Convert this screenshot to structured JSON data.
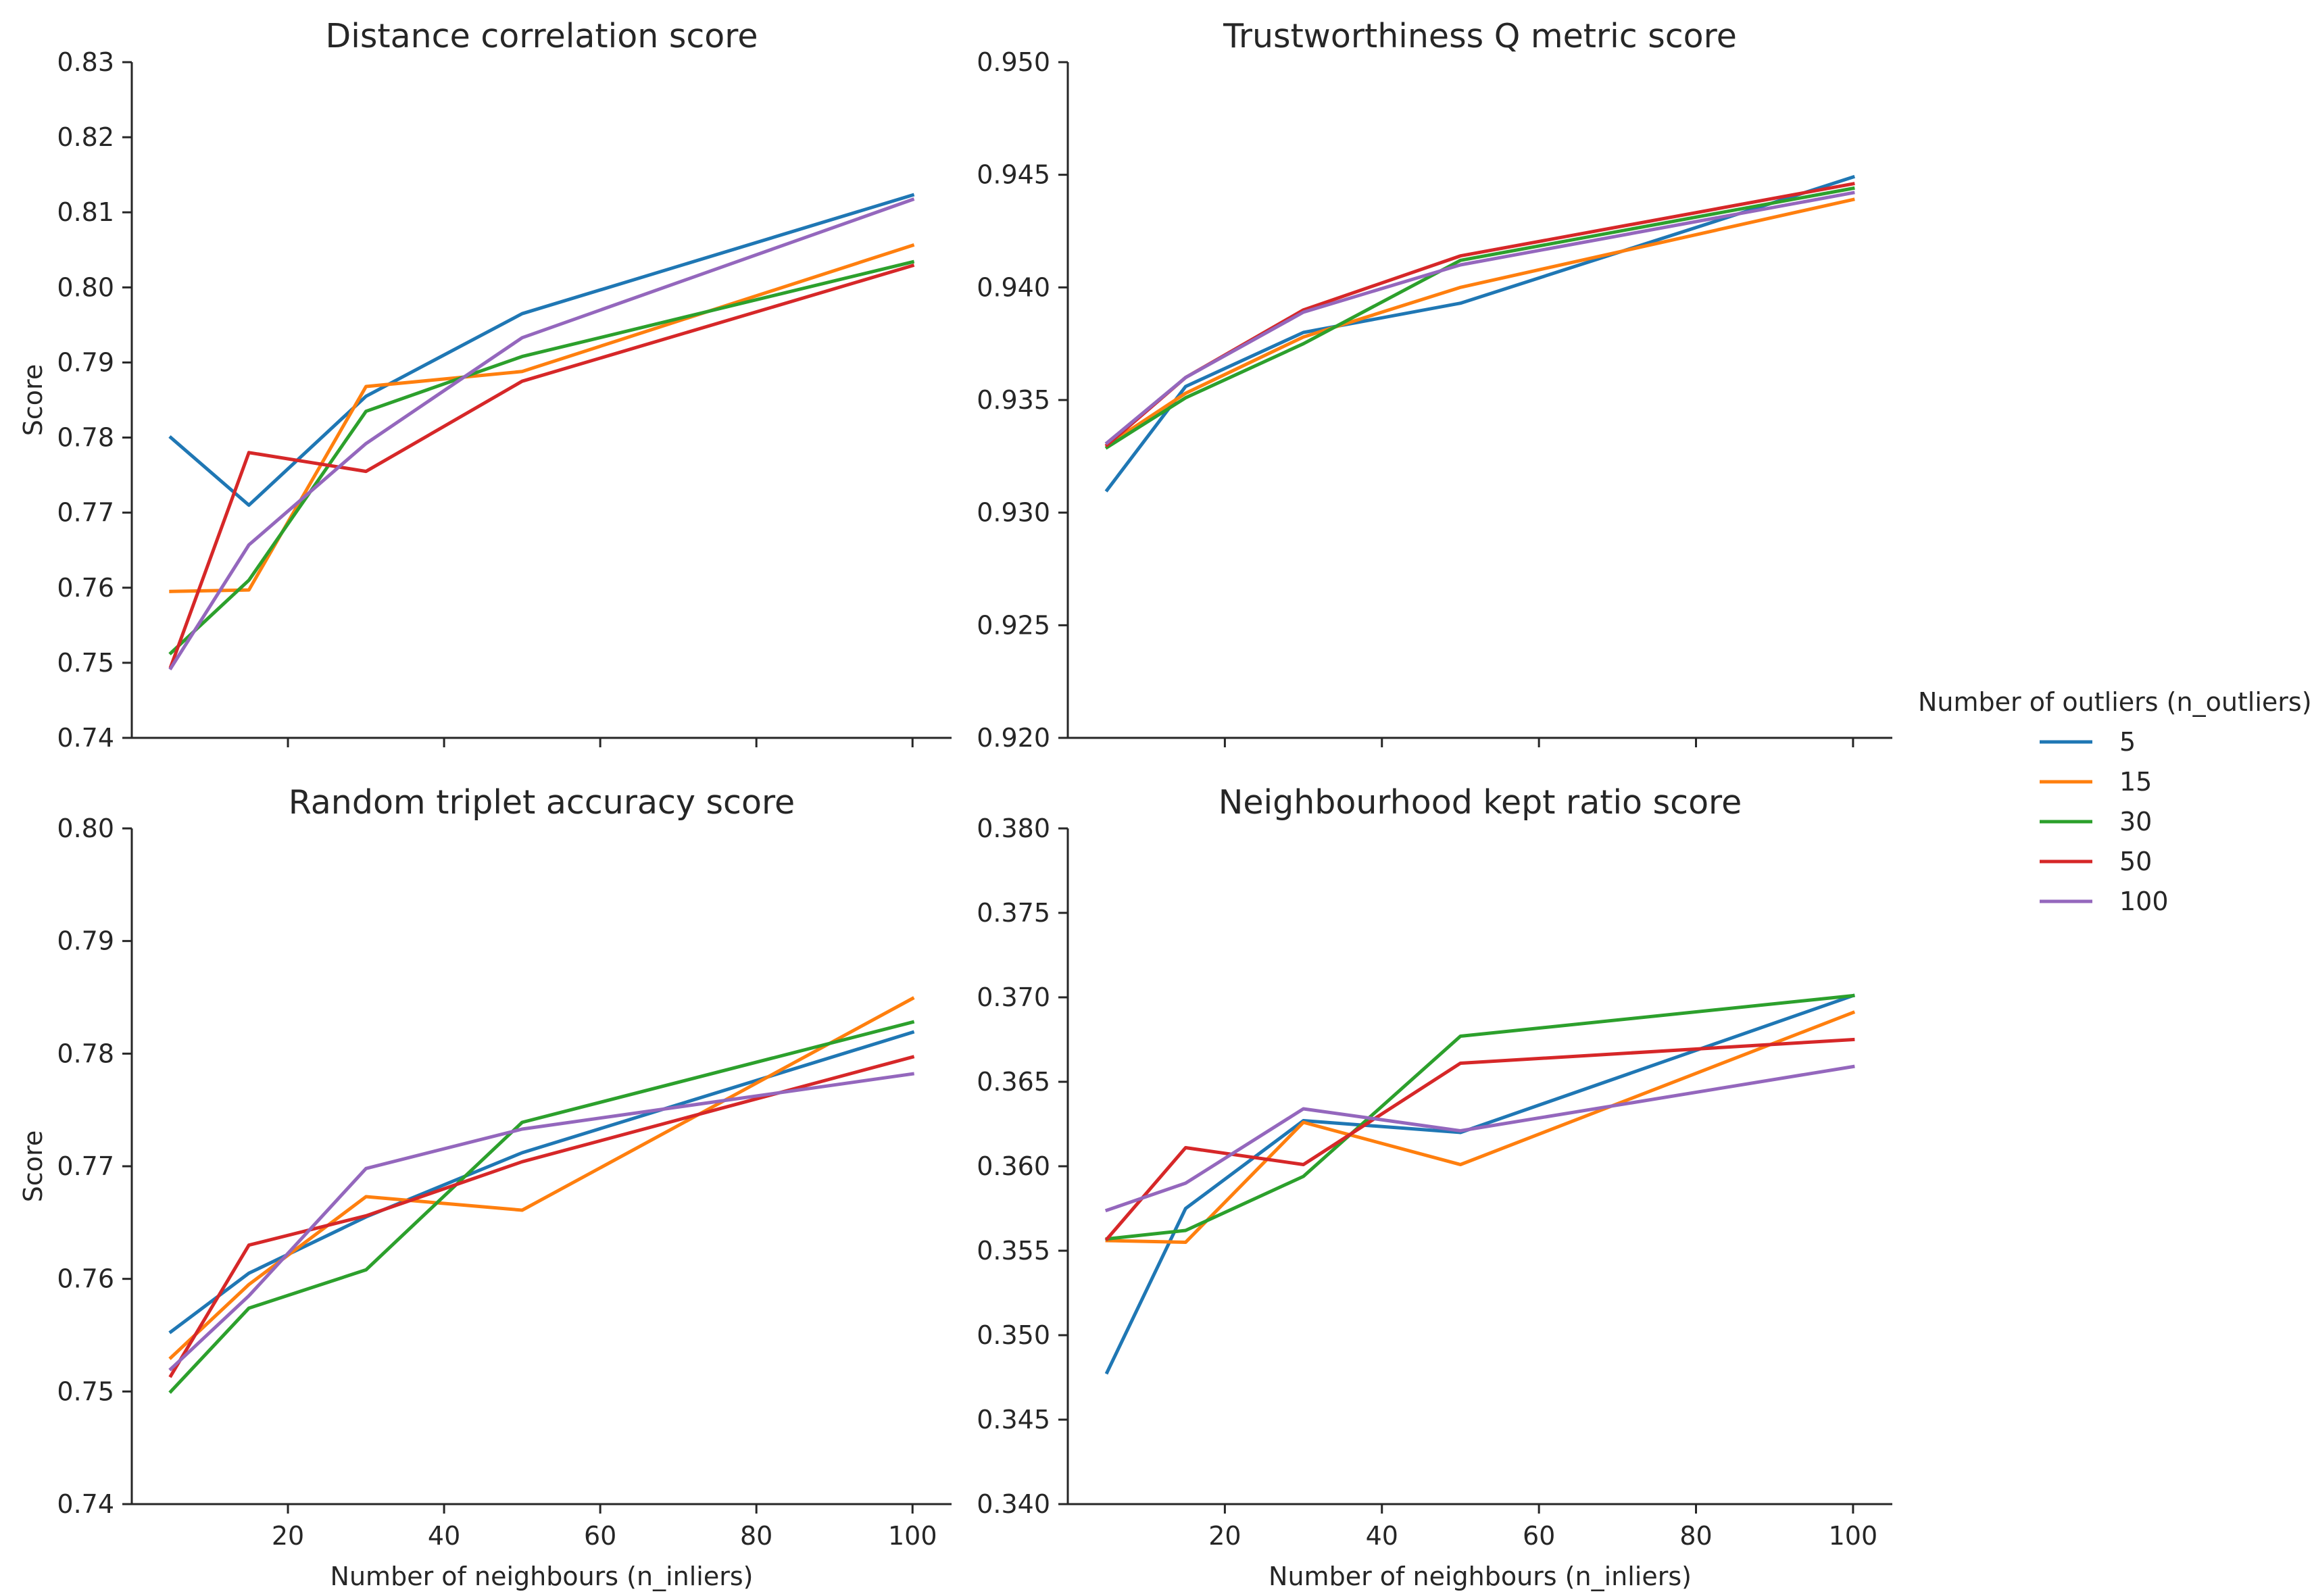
{
  "chart_data": [
    {
      "type": "line",
      "title": "Distance correlation score",
      "xlabel": "",
      "ylabel": "Score",
      "x": [
        5,
        15,
        30,
        50,
        100
      ],
      "xlim": [
        0,
        105
      ],
      "xticks": [
        20,
        40,
        60,
        80,
        100
      ],
      "ylim": [
        0.74,
        0.83
      ],
      "yticks": [
        "0.74",
        "0.75",
        "0.76",
        "0.77",
        "0.78",
        "0.79",
        "0.80",
        "0.81",
        "0.82",
        "0.83"
      ],
      "grid": false,
      "series": [
        {
          "name": "5",
          "values": [
            0.78,
            0.771,
            0.7855,
            0.7965,
            0.8123
          ]
        },
        {
          "name": "15",
          "values": [
            0.7595,
            0.7597,
            0.7868,
            0.7888,
            0.8056
          ]
        },
        {
          "name": "30",
          "values": [
            0.7513,
            0.761,
            0.7835,
            0.7908,
            0.8034
          ]
        },
        {
          "name": "50",
          "values": [
            0.7495,
            0.778,
            0.7755,
            0.7875,
            0.8029
          ]
        },
        {
          "name": "100",
          "values": [
            0.7493,
            0.7657,
            0.7792,
            0.7933,
            0.8117
          ]
        }
      ]
    },
    {
      "type": "line",
      "title": "Trustworthiness Q metric score",
      "xlabel": "",
      "ylabel": "",
      "x": [
        5,
        15,
        30,
        50,
        100
      ],
      "xlim": [
        0,
        105
      ],
      "xticks": [
        20,
        40,
        60,
        80,
        100
      ],
      "ylim": [
        0.92,
        0.95
      ],
      "yticks": [
        "0.920",
        "0.925",
        "0.930",
        "0.935",
        "0.940",
        "0.945",
        "0.950"
      ],
      "grid": false,
      "series": [
        {
          "name": "5",
          "values": [
            0.931,
            0.9356,
            0.938,
            0.9393,
            0.9449
          ]
        },
        {
          "name": "15",
          "values": [
            0.933,
            0.9353,
            0.9378,
            0.94,
            0.9439
          ]
        },
        {
          "name": "30",
          "values": [
            0.9329,
            0.9351,
            0.9375,
            0.9412,
            0.9444
          ]
        },
        {
          "name": "50",
          "values": [
            0.933,
            0.936,
            0.939,
            0.9414,
            0.9446
          ]
        },
        {
          "name": "100",
          "values": [
            0.9331,
            0.936,
            0.9389,
            0.941,
            0.9442
          ]
        }
      ]
    },
    {
      "type": "line",
      "title": "Random triplet accuracy score",
      "xlabel": "Number of neighbours (n_inliers)",
      "ylabel": "Score",
      "x": [
        5,
        15,
        30,
        50,
        100
      ],
      "xlim": [
        0,
        105
      ],
      "xticks": [
        20,
        40,
        60,
        80,
        100
      ],
      "ylim": [
        0.74,
        0.8
      ],
      "yticks": [
        "0.74",
        "0.75",
        "0.76",
        "0.77",
        "0.78",
        "0.79",
        "0.80"
      ],
      "grid": false,
      "series": [
        {
          "name": "5",
          "values": [
            0.7553,
            0.7605,
            0.7655,
            0.7712,
            0.7819
          ]
        },
        {
          "name": "15",
          "values": [
            0.753,
            0.7595,
            0.7673,
            0.7661,
            0.7849
          ]
        },
        {
          "name": "30",
          "values": [
            0.75,
            0.7574,
            0.7608,
            0.7739,
            0.7828
          ]
        },
        {
          "name": "50",
          "values": [
            0.7514,
            0.763,
            0.7656,
            0.7704,
            0.7797
          ]
        },
        {
          "name": "100",
          "values": [
            0.752,
            0.7585,
            0.7698,
            0.7733,
            0.7782
          ]
        }
      ]
    },
    {
      "type": "line",
      "title": "Neighbourhood kept ratio score",
      "xlabel": "Number of neighbours (n_inliers)",
      "ylabel": "",
      "x": [
        5,
        15,
        30,
        50,
        100
      ],
      "xlim": [
        0,
        105
      ],
      "xticks": [
        20,
        40,
        60,
        80,
        100
      ],
      "ylim": [
        0.34,
        0.38
      ],
      "yticks": [
        "0.340",
        "0.345",
        "0.350",
        "0.355",
        "0.360",
        "0.365",
        "0.370",
        "0.375",
        "0.380"
      ],
      "grid": false,
      "series": [
        {
          "name": "5",
          "values": [
            0.3478,
            0.3575,
            0.3627,
            0.362,
            0.3701
          ]
        },
        {
          "name": "15",
          "values": [
            0.3556,
            0.3555,
            0.3626,
            0.3601,
            0.3691
          ]
        },
        {
          "name": "30",
          "values": [
            0.3557,
            0.3562,
            0.3594,
            0.3677,
            0.3701
          ]
        },
        {
          "name": "50",
          "values": [
            0.3557,
            0.3611,
            0.3601,
            0.3661,
            0.3675
          ]
        },
        {
          "name": "100",
          "values": [
            0.3574,
            0.359,
            0.3634,
            0.3621,
            0.3659
          ]
        }
      ]
    }
  ],
  "legend": {
    "title": "Number of outliers (n_outliers)",
    "placement": "right",
    "items": [
      {
        "label": "5",
        "color": "#1f77b4"
      },
      {
        "label": "15",
        "color": "#ff7f0e"
      },
      {
        "label": "30",
        "color": "#2ca02c"
      },
      {
        "label": "50",
        "color": "#d62728"
      },
      {
        "label": "100",
        "color": "#9467bd"
      }
    ]
  }
}
